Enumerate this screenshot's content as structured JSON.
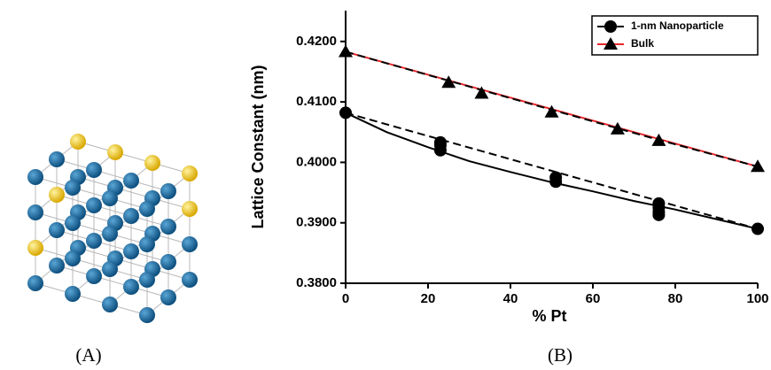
{
  "figure": {
    "panel_labels": [
      "(A)",
      "(B)"
    ]
  },
  "chart_data": {
    "type": "scatter",
    "x_label": "% Pt",
    "y_label": "Lattice Constant (nm)",
    "xlim": [
      0,
      100
    ],
    "xticks": [
      0,
      20,
      40,
      60,
      80,
      100
    ],
    "ylim": [
      0.38,
      0.4251
    ],
    "yticks": [
      {
        "value": 0.38,
        "label": "0.3800"
      },
      {
        "value": 0.39,
        "label": "0.3900"
      },
      {
        "value": 0.4,
        "label": "0.4000"
      },
      {
        "value": 0.41,
        "label": "0.4100"
      },
      {
        "value": 0.42,
        "label": "0.4200"
      }
    ],
    "legend": "upper right",
    "series": [
      {
        "name": "1-nm Nanoparticle",
        "marker": "circle",
        "color": "#000000",
        "line_color": "#000000",
        "x": [
          0,
          23,
          23,
          23,
          51,
          51,
          76,
          76,
          76,
          76,
          100
        ],
        "values": [
          0.4082,
          0.4033,
          0.4028,
          0.402,
          0.3975,
          0.3968,
          0.3932,
          0.3925,
          0.3918,
          0.3913,
          0.389
        ]
      },
      {
        "name": "Bulk",
        "marker": "triangle",
        "color": "#000000",
        "line_color": "#e8262a",
        "x": [
          0,
          25,
          33,
          50,
          66,
          76,
          100
        ],
        "values": [
          0.4183,
          0.4132,
          0.4114,
          0.4083,
          0.4055,
          0.4036,
          0.3993
        ]
      }
    ],
    "lines": [
      {
        "color": "#000000",
        "dash": false,
        "x": [
          0,
          10,
          20,
          30,
          40,
          50,
          60,
          70,
          80,
          90,
          100
        ],
        "values": [
          0.4082,
          0.405,
          0.4025,
          0.4002,
          0.3984,
          0.3967,
          0.3952,
          0.3936,
          0.3922,
          0.3906,
          0.389
        ]
      },
      {
        "color": "#000000",
        "dash": true,
        "x": [
          0,
          100
        ],
        "values": [
          0.4082,
          0.389
        ]
      },
      {
        "color": "#e8262a",
        "dash": false,
        "x": [
          0,
          100
        ],
        "values": [
          0.4183,
          0.3993
        ]
      },
      {
        "color": "#000000",
        "dash": true,
        "x": [
          0,
          25,
          50,
          75,
          100
        ],
        "values": [
          0.4183,
          0.4135,
          0.4087,
          0.4039,
          0.3993
        ]
      }
    ]
  }
}
